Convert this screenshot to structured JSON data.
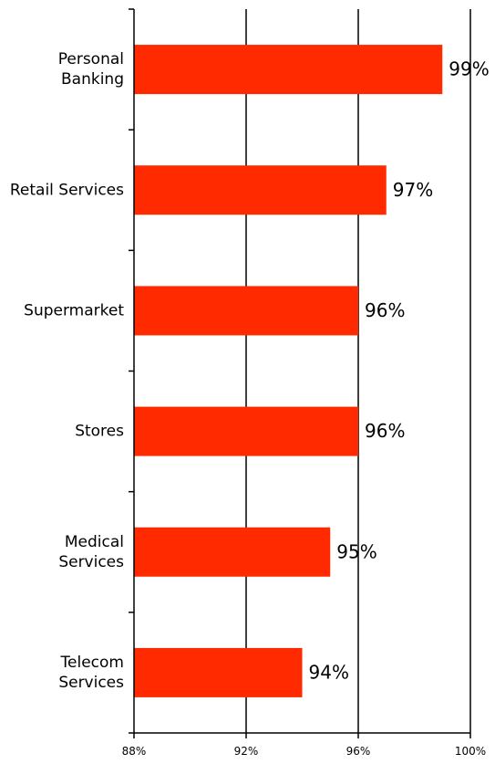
{
  "chart_data": {
    "type": "bar",
    "orientation": "horizontal",
    "categories": [
      [
        "Personal",
        "Banking"
      ],
      [
        "Retail Services"
      ],
      [
        "Supermarket"
      ],
      [
        "Stores"
      ],
      [
        "Medical",
        "Services"
      ],
      [
        "Telecom",
        "Services"
      ]
    ],
    "values": [
      99,
      97,
      96,
      96,
      95,
      94
    ],
    "value_labels": [
      "99%",
      "97%",
      "96%",
      "96%",
      "95%",
      "94%"
    ],
    "xlim": [
      88,
      100
    ],
    "xticks": [
      88,
      92,
      96,
      100
    ],
    "xtick_labels": [
      "88%",
      "92%",
      "96%",
      "100%"
    ],
    "grid": "vertical",
    "bar_color": "#ff2a00",
    "legend": "none"
  }
}
